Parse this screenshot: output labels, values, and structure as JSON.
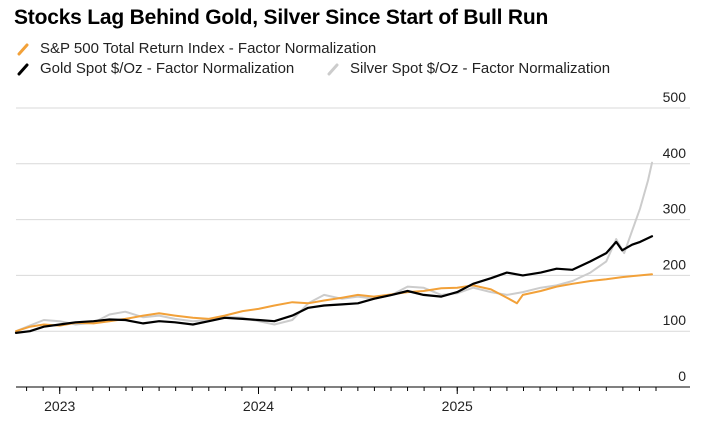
{
  "chart_data": {
    "type": "line",
    "title": "Stocks Lag Behind Gold, Silver Since Start of Bull Run",
    "xlabel": "",
    "ylabel": "",
    "ylim": [
      0,
      500
    ],
    "yticks": [
      500,
      400,
      300,
      200,
      100,
      0
    ],
    "xticks": [
      {
        "label": "2023",
        "t": 2023.0
      },
      {
        "label": "2024",
        "t": 2024.0
      },
      {
        "label": "2025",
        "t": 2025.0
      }
    ],
    "xlim": [
      2022.78,
      2026.0
    ],
    "series": [
      {
        "name": "S&P 500 Total Return Index - Factor Normalization",
        "color": "#f2a139",
        "t": [
          2022.78,
          2022.85,
          2022.92,
          2023.0,
          2023.08,
          2023.17,
          2023.25,
          2023.33,
          2023.42,
          2023.5,
          2023.58,
          2023.67,
          2023.75,
          2023.83,
          2023.92,
          2024.0,
          2024.08,
          2024.17,
          2024.25,
          2024.33,
          2024.42,
          2024.5,
          2024.58,
          2024.67,
          2024.75,
          2024.83,
          2024.92,
          2025.0,
          2025.08,
          2025.17,
          2025.25,
          2025.3,
          2025.33,
          2025.42,
          2025.5,
          2025.58,
          2025.67,
          2025.75,
          2025.83,
          2025.92,
          2025.98
        ],
        "values": [
          100,
          108,
          112,
          110,
          115,
          114,
          118,
          122,
          128,
          132,
          128,
          124,
          122,
          128,
          136,
          140,
          146,
          152,
          150,
          155,
          160,
          165,
          162,
          166,
          170,
          172,
          177,
          178,
          182,
          175,
          160,
          150,
          165,
          172,
          180,
          185,
          190,
          193,
          197,
          200,
          202
        ]
      },
      {
        "name": "Gold Spot $/Oz - Factor Normalization",
        "color": "#000000",
        "t": [
          2022.78,
          2022.85,
          2022.92,
          2023.0,
          2023.08,
          2023.17,
          2023.25,
          2023.33,
          2023.42,
          2023.5,
          2023.58,
          2023.67,
          2023.75,
          2023.83,
          2023.92,
          2024.0,
          2024.08,
          2024.17,
          2024.25,
          2024.33,
          2024.42,
          2024.5,
          2024.58,
          2024.67,
          2024.75,
          2024.83,
          2024.92,
          2025.0,
          2025.08,
          2025.17,
          2025.25,
          2025.33,
          2025.42,
          2025.5,
          2025.58,
          2025.67,
          2025.75,
          2025.8,
          2025.83,
          2025.88,
          2025.92,
          2025.98
        ],
        "values": [
          97,
          100,
          108,
          112,
          116,
          118,
          121,
          120,
          114,
          118,
          116,
          112,
          118,
          124,
          122,
          120,
          118,
          128,
          142,
          146,
          148,
          150,
          158,
          165,
          172,
          165,
          162,
          170,
          185,
          195,
          205,
          200,
          205,
          212,
          210,
          225,
          240,
          260,
          245,
          255,
          260,
          270
        ]
      },
      {
        "name": "Silver Spot $/Oz - Factor Normalization",
        "color": "#cccccc",
        "t": [
          2022.78,
          2022.85,
          2022.92,
          2023.0,
          2023.08,
          2023.17,
          2023.25,
          2023.33,
          2023.42,
          2023.5,
          2023.58,
          2023.67,
          2023.75,
          2023.83,
          2023.92,
          2024.0,
          2024.08,
          2024.17,
          2024.25,
          2024.33,
          2024.42,
          2024.5,
          2024.58,
          2024.67,
          2024.75,
          2024.83,
          2024.92,
          2025.0,
          2025.08,
          2025.17,
          2025.25,
          2025.33,
          2025.42,
          2025.5,
          2025.58,
          2025.67,
          2025.75,
          2025.8,
          2025.84,
          2025.88,
          2025.92,
          2025.96,
          2025.98
        ],
        "values": [
          100,
          110,
          120,
          118,
          112,
          115,
          130,
          135,
          125,
          128,
          122,
          118,
          120,
          126,
          124,
          118,
          112,
          120,
          150,
          165,
          158,
          162,
          158,
          165,
          180,
          178,
          165,
          168,
          178,
          170,
          165,
          170,
          178,
          182,
          190,
          205,
          225,
          265,
          240,
          280,
          320,
          370,
          402
        ]
      }
    ]
  }
}
